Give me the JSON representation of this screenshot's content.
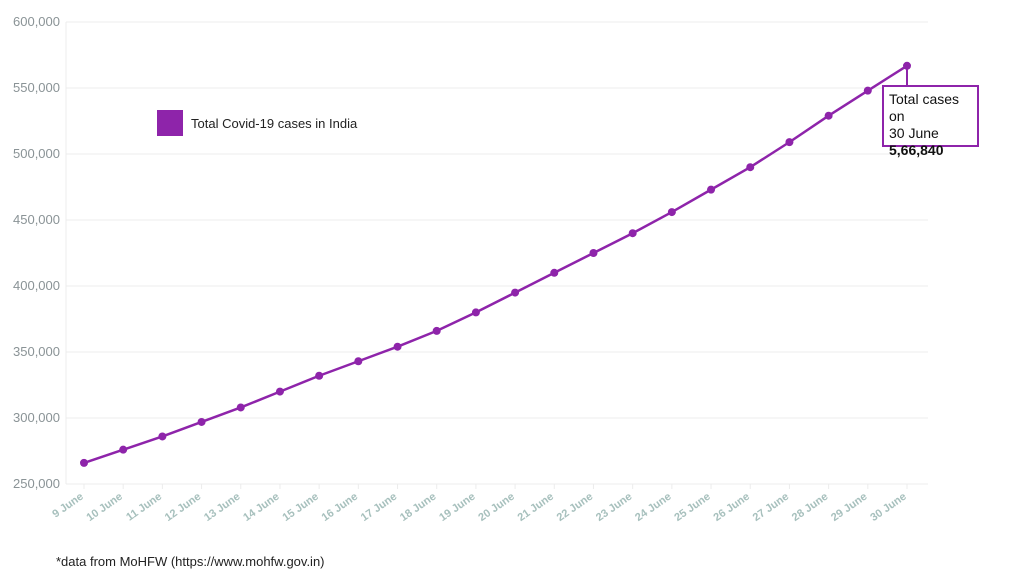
{
  "chart_data": {
    "type": "line",
    "x": [
      "9 June",
      "10 June",
      "11 June",
      "12 June",
      "13 June",
      "14 June",
      "15 June",
      "16 June",
      "17 June",
      "18 June",
      "19 June",
      "20 June",
      "21 June",
      "22 June",
      "23 June",
      "24 June",
      "25 June",
      "26 June",
      "27 June",
      "28 June",
      "29 June",
      "30 June"
    ],
    "series": [
      {
        "name": "Total Covid-19 cases in India",
        "values": [
          266000,
          276000,
          286000,
          297000,
          308000,
          320000,
          332000,
          343000,
          354000,
          366000,
          380000,
          395000,
          410000,
          425000,
          440000,
          456000,
          473000,
          490000,
          509000,
          529000,
          548000,
          566840
        ]
      }
    ],
    "ylim": [
      250000,
      600000
    ],
    "yticks": [
      "250,000",
      "300,000",
      "350,000",
      "400,000",
      "450,000",
      "500,000",
      "550,000",
      "600,000"
    ],
    "grid": true,
    "legend_position": "top-left",
    "colors": {
      "series": "#8e24aa",
      "grid": "#ececec",
      "ytick": "#8a9396",
      "xtick": "#a7c0bd"
    },
    "annotation": {
      "line1": "Total cases on",
      "line2": "30 June",
      "value": "5,66,840"
    }
  },
  "footnote": "*data from MoHFW (https://www.mohfw.gov.in)"
}
